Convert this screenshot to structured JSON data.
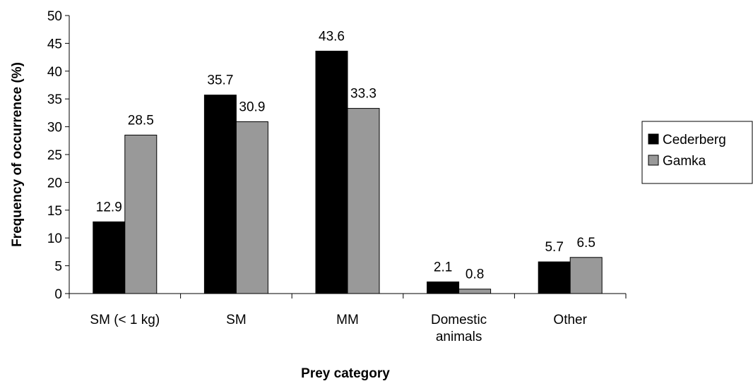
{
  "chart_data": {
    "type": "bar",
    "title": "",
    "xlabel": "Prey category",
    "ylabel": "Frequency of occurrence (%)",
    "ylim": [
      0,
      50
    ],
    "ytick_step": 5,
    "categories": [
      [
        "SM (< 1 kg)"
      ],
      [
        "SM"
      ],
      [
        "MM"
      ],
      [
        "Domestic",
        "animals"
      ],
      [
        "Other"
      ]
    ],
    "series": [
      {
        "name": "Cederberg",
        "color": "#000000",
        "values": [
          12.9,
          35.7,
          43.6,
          2.1,
          5.7
        ]
      },
      {
        "name": "Gamka",
        "color": "#999999",
        "values": [
          28.5,
          30.9,
          33.3,
          0.8,
          6.5
        ]
      }
    ],
    "data_labels": [
      [
        "12.9",
        "35.7",
        "43.6",
        "2.1",
        "5.7"
      ],
      [
        "28.5",
        "30.9",
        "33.3",
        "0.8",
        "6.5"
      ]
    ],
    "legend_position": "right",
    "grid": false
  }
}
